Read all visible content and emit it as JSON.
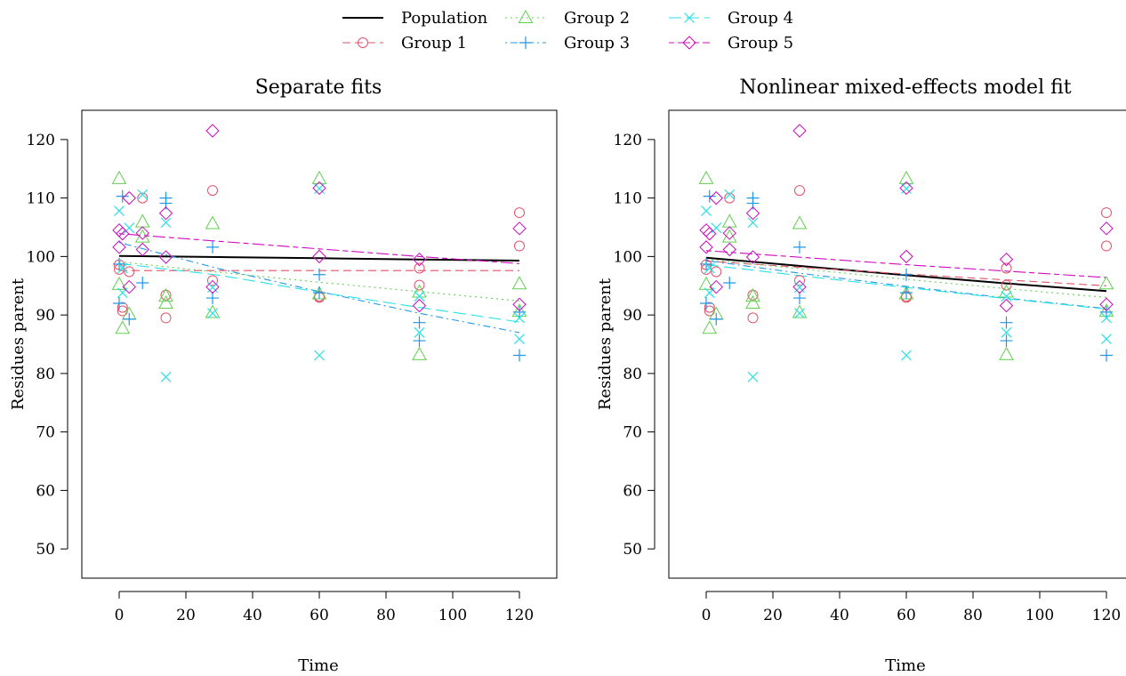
{
  "legend": {
    "placement": "top-center",
    "entries": [
      {
        "name": "Population",
        "color": "#000000",
        "marker": "none",
        "dash": "solid"
      },
      {
        "name": "Group 1",
        "color": "#DF536B",
        "marker": "circle",
        "dash": "dashed"
      },
      {
        "name": "Group 2",
        "color": "#61D04F",
        "marker": "triangle",
        "dash": "dotted"
      },
      {
        "name": "Group 3",
        "color": "#2297E6",
        "marker": "plus",
        "dash": "dotdash"
      },
      {
        "name": "Group 4",
        "color": "#28E2E5",
        "marker": "cross",
        "dash": "longdash"
      },
      {
        "name": "Group 5",
        "color": "#CD0BBC",
        "marker": "diamond",
        "dash": "twodash"
      }
    ]
  },
  "chart_data": [
    {
      "type": "scatter",
      "title": "Separate fits",
      "xlabel": "Time",
      "ylabel": "Residues parent",
      "xlim": [
        0,
        120
      ],
      "ylim": [
        45,
        125
      ],
      "xticks": [
        0,
        20,
        40,
        60,
        80,
        100,
        120
      ],
      "yticks": [
        50,
        60,
        70,
        80,
        90,
        100,
        110,
        120
      ],
      "grid": false,
      "points": [
        {
          "name": "Group 1",
          "x": [
            0,
            0,
            1,
            1,
            3,
            7,
            14,
            14,
            28,
            28,
            60,
            60,
            90,
            90,
            120,
            120
          ],
          "y": [
            97.8,
            98.6,
            91.3,
            90.7,
            97.4,
            110.0,
            89.5,
            93.4,
            111.3,
            95.9,
            93.2,
            93.0,
            98.0,
            95.1,
            101.8,
            107.5
          ]
        },
        {
          "name": "Group 2",
          "x": [
            0,
            0,
            1,
            3,
            7,
            7,
            14,
            14,
            28,
            28,
            60,
            60,
            90,
            90,
            120,
            120
          ],
          "y": [
            113.3,
            95.2,
            87.7,
            90.1,
            105.9,
            103.3,
            93.2,
            92.0,
            105.6,
            90.4,
            113.3,
            93.6,
            93.9,
            83.2,
            95.3,
            90.6
          ]
        },
        {
          "name": "Group 3",
          "x": [
            0,
            0,
            1,
            3,
            7,
            14,
            14,
            28,
            28,
            60,
            60,
            90,
            90,
            120,
            120
          ],
          "y": [
            92.0,
            98.7,
            110.3,
            89.3,
            95.5,
            110.0,
            109.1,
            101.6,
            92.9,
            96.9,
            93.8,
            88.7,
            85.6,
            83.1,
            90.5
          ]
        },
        {
          "name": "Group 4",
          "x": [
            0,
            1,
            1,
            3,
            7,
            14,
            14,
            28,
            28,
            60,
            60,
            90,
            90,
            120,
            120
          ],
          "y": [
            107.8,
            93.8,
            98.0,
            104.9,
            110.6,
            79.4,
            105.8,
            90.3,
            94.7,
            83.1,
            111.6,
            87.0,
            93.2,
            85.9,
            89.5
          ]
        },
        {
          "name": "Group 5",
          "x": [
            0,
            0,
            1,
            3,
            3,
            7,
            7,
            14,
            14,
            28,
            28,
            60,
            60,
            90,
            90,
            120,
            120
          ],
          "y": [
            101.6,
            104.5,
            103.9,
            110.0,
            94.8,
            104.0,
            101.2,
            107.4,
            99.9,
            121.5,
            94.8,
            111.7,
            100.0,
            99.5,
            91.6,
            104.8,
            91.8
          ]
        }
      ],
      "lines": [
        {
          "name": "Population",
          "x": [
            0,
            30,
            60,
            90,
            120
          ],
          "y": [
            100.1,
            99.9,
            99.7,
            99.5,
            99.3
          ]
        },
        {
          "name": "Group 1",
          "x": [
            0,
            30,
            60,
            90,
            120
          ],
          "y": [
            97.6,
            97.6,
            97.6,
            97.6,
            97.6
          ]
        },
        {
          "name": "Group 2",
          "x": [
            0,
            30,
            60,
            90,
            120
          ],
          "y": [
            99.1,
            97.3,
            95.6,
            94.0,
            92.4
          ]
        },
        {
          "name": "Group 3",
          "x": [
            0,
            30,
            60,
            90,
            120
          ],
          "y": [
            102.4,
            97.9,
            94.0,
            90.3,
            87.0
          ]
        },
        {
          "name": "Group 4",
          "x": [
            0,
            30,
            60,
            90,
            120
          ],
          "y": [
            98.8,
            96.8,
            93.9,
            91.3,
            88.8
          ]
        },
        {
          "name": "Group 5",
          "x": [
            0,
            30,
            60,
            90,
            120
          ],
          "y": [
            103.9,
            102.6,
            101.3,
            100.0,
            98.8
          ]
        }
      ]
    },
    {
      "type": "scatter",
      "title": "Nonlinear mixed-effects model fit",
      "xlabel": "Time",
      "ylabel": "Residues parent",
      "xlim": [
        0,
        120
      ],
      "ylim": [
        45,
        125
      ],
      "xticks": [
        0,
        20,
        40,
        60,
        80,
        100,
        120
      ],
      "yticks": [
        50,
        60,
        70,
        80,
        90,
        100,
        110,
        120
      ],
      "grid": false,
      "points": [
        {
          "name": "Group 1",
          "x": [
            0,
            0,
            1,
            1,
            3,
            7,
            14,
            14,
            28,
            28,
            60,
            60,
            90,
            90,
            120,
            120
          ],
          "y": [
            97.8,
            98.6,
            91.3,
            90.7,
            97.4,
            110.0,
            89.5,
            93.4,
            111.3,
            95.9,
            93.2,
            93.0,
            98.0,
            95.1,
            101.8,
            107.5
          ]
        },
        {
          "name": "Group 2",
          "x": [
            0,
            0,
            1,
            3,
            7,
            7,
            14,
            14,
            28,
            28,
            60,
            60,
            90,
            90,
            120,
            120
          ],
          "y": [
            113.3,
            95.2,
            87.7,
            90.1,
            105.9,
            103.3,
            93.2,
            92.0,
            105.6,
            90.4,
            113.3,
            93.6,
            93.9,
            83.2,
            95.3,
            90.6
          ]
        },
        {
          "name": "Group 3",
          "x": [
            0,
            0,
            1,
            3,
            7,
            14,
            14,
            28,
            28,
            60,
            60,
            90,
            90,
            120,
            120
          ],
          "y": [
            92.0,
            98.7,
            110.3,
            89.3,
            95.5,
            110.0,
            109.1,
            101.6,
            92.9,
            96.9,
            93.8,
            88.7,
            85.6,
            83.1,
            90.5
          ]
        },
        {
          "name": "Group 4",
          "x": [
            0,
            1,
            1,
            3,
            7,
            14,
            14,
            28,
            28,
            60,
            60,
            90,
            90,
            120,
            120
          ],
          "y": [
            107.8,
            93.8,
            98.0,
            104.9,
            110.6,
            79.4,
            105.8,
            90.3,
            94.7,
            83.1,
            111.6,
            87.0,
            93.2,
            85.9,
            89.5
          ]
        },
        {
          "name": "Group 5",
          "x": [
            0,
            0,
            1,
            3,
            3,
            7,
            7,
            14,
            14,
            28,
            28,
            60,
            60,
            90,
            90,
            120,
            120
          ],
          "y": [
            101.6,
            104.5,
            103.9,
            110.0,
            94.8,
            104.0,
            101.2,
            107.4,
            99.9,
            121.5,
            94.8,
            111.7,
            100.0,
            99.5,
            91.6,
            104.8,
            91.8
          ]
        }
      ],
      "lines": [
        {
          "name": "Population",
          "x": [
            0,
            30,
            60,
            90,
            120
          ],
          "y": [
            99.8,
            98.3,
            96.8,
            95.4,
            94.1
          ]
        },
        {
          "name": "Group 1",
          "x": [
            0,
            30,
            60,
            90,
            120
          ],
          "y": [
            99.2,
            98.1,
            97.0,
            96.0,
            95.0
          ]
        },
        {
          "name": "Group 2",
          "x": [
            0,
            30,
            60,
            90,
            120
          ],
          "y": [
            99.5,
            97.8,
            96.1,
            94.5,
            93.0
          ]
        },
        {
          "name": "Group 3",
          "x": [
            0,
            30,
            60,
            90,
            120
          ],
          "y": [
            99.3,
            97.0,
            94.9,
            92.9,
            91.1
          ]
        },
        {
          "name": "Group 4",
          "x": [
            0,
            30,
            60,
            90,
            120
          ],
          "y": [
            98.6,
            96.6,
            94.7,
            92.8,
            91.0
          ]
        },
        {
          "name": "Group 5",
          "x": [
            0,
            30,
            60,
            90,
            120
          ],
          "y": [
            101.0,
            99.8,
            98.6,
            97.5,
            96.4
          ]
        }
      ]
    }
  ]
}
